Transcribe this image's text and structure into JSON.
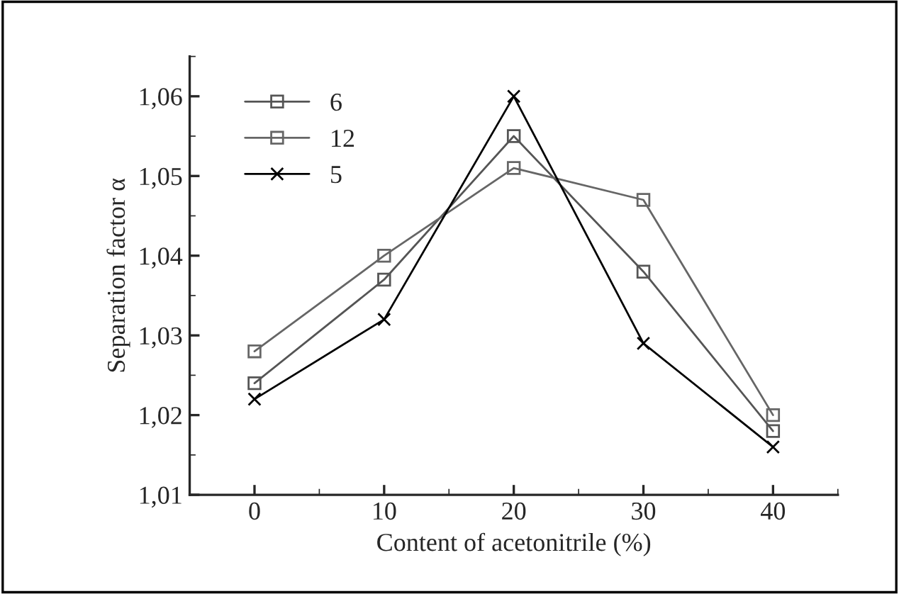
{
  "chart_data": {
    "type": "line",
    "xlabel": "Content of acetonitrile (%)",
    "ylabel": "Separation factor α",
    "x": [
      0,
      10,
      20,
      30,
      40
    ],
    "series": [
      {
        "name": "6",
        "color": "#555555",
        "marker": "square",
        "values": [
          1.024,
          1.037,
          1.055,
          1.038,
          1.018
        ]
      },
      {
        "name": "12",
        "color": "#666666",
        "marker": "square",
        "values": [
          1.028,
          1.04,
          1.051,
          1.047,
          1.02
        ]
      },
      {
        "name": "5",
        "color": "#000000",
        "marker": "cross",
        "values": [
          1.022,
          1.032,
          1.06,
          1.029,
          1.016
        ]
      }
    ],
    "xlim": [
      -5,
      45
    ],
    "xticks": [
      0,
      10,
      20,
      30,
      40
    ],
    "ylim": [
      1.01,
      1.065
    ],
    "yticks": [
      {
        "value": 1.01,
        "label": "1,01"
      },
      {
        "value": 1.02,
        "label": "1,02"
      },
      {
        "value": 1.03,
        "label": "1,03"
      },
      {
        "value": 1.04,
        "label": "1,04"
      },
      {
        "value": 1.05,
        "label": "1,05"
      },
      {
        "value": 1.06,
        "label": "1,06"
      }
    ],
    "grid": false,
    "legend": "top left",
    "line_style": "solid"
  }
}
